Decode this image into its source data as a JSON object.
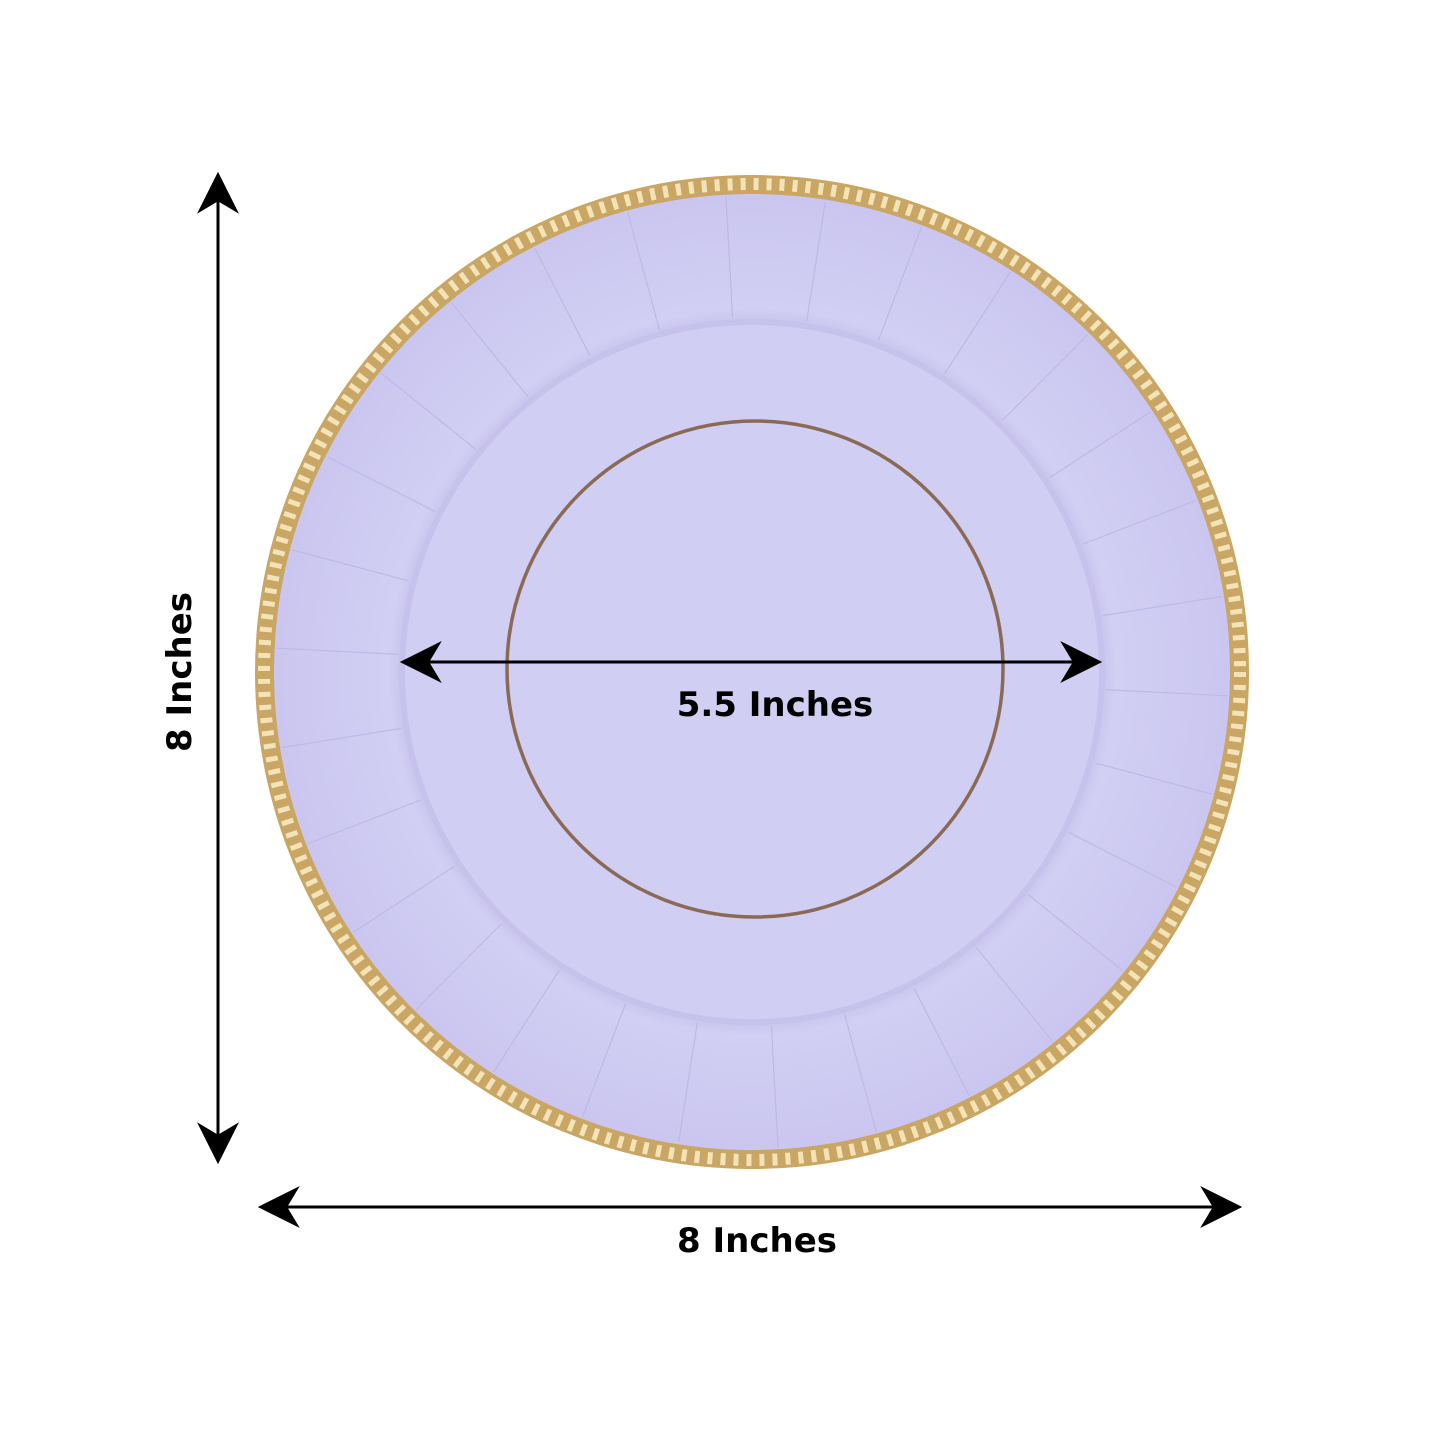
{
  "labels": {
    "height": "8 Inches",
    "width": "8 Inches",
    "inner_diameter": "5.5 Inches"
  },
  "colors": {
    "plate": "#cfcbf2",
    "plate_shadow": "#c3bfea",
    "rim_gold": "#c9a663",
    "inner_ring": "#8a6a55",
    "arrows": "#000000"
  }
}
